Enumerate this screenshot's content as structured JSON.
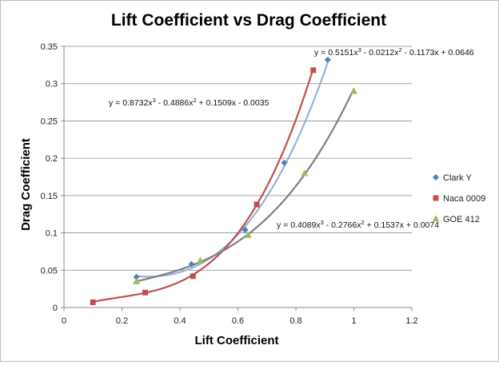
{
  "chart_data": {
    "type": "scatter",
    "title": "Lift Coefficient vs Drag Coefficient",
    "xlabel": "Lift Coefficient",
    "ylabel": "Drag Coefficient",
    "xlim": [
      0,
      1.2
    ],
    "ylim": [
      0,
      0.35
    ],
    "xticks": [
      "0",
      "0.2",
      "0.4",
      "0.6",
      "0.8",
      "1",
      "1.2"
    ],
    "yticks": [
      "0",
      "0.05",
      "0.1",
      "0.15",
      "0.2",
      "0.25",
      "0.3",
      "0.35"
    ],
    "grid": "horizontal",
    "legend_position": "right",
    "series": [
      {
        "name": "Clark Y",
        "color": "#4F81BD",
        "trend_color": "#95B3D7",
        "marker": "diamond",
        "x": [
          0.25,
          0.44,
          0.625,
          0.76,
          0.91
        ],
        "y": [
          0.041,
          0.058,
          0.104,
          0.194,
          0.332
        ],
        "trendline": "y = 0.5151x3 - 0.0212x2 - 0.1173x + 0.0646",
        "coef": [
          0.5151,
          -0.0212,
          -0.1173,
          0.0646
        ]
      },
      {
        "name": "Naca 0009",
        "color": "#C0504D",
        "trend_color": "#C0504D",
        "marker": "square",
        "x": [
          0.1,
          0.28,
          0.445,
          0.665,
          0.86
        ],
        "y": [
          0.007,
          0.02,
          0.042,
          0.138,
          0.318
        ],
        "trendline": "y = 0.8732x3 - 0.4886x2 + 0.1509x - 0.0035",
        "coef": [
          0.8732,
          -0.4886,
          0.1509,
          -0.0035
        ]
      },
      {
        "name": "GOE 412",
        "color": "#9BBB59",
        "trend_color": "#7F7F7F",
        "marker": "triangle",
        "x": [
          0.25,
          0.47,
          0.635,
          0.83,
          1.0
        ],
        "y": [
          0.035,
          0.063,
          0.097,
          0.18,
          0.29
        ],
        "trendline": "y = 0.4089x3 - 0.2766x2 + 0.1537x + 0.0074",
        "coef": [
          0.4089,
          -0.2766,
          0.1537,
          0.0074
        ]
      }
    ]
  }
}
